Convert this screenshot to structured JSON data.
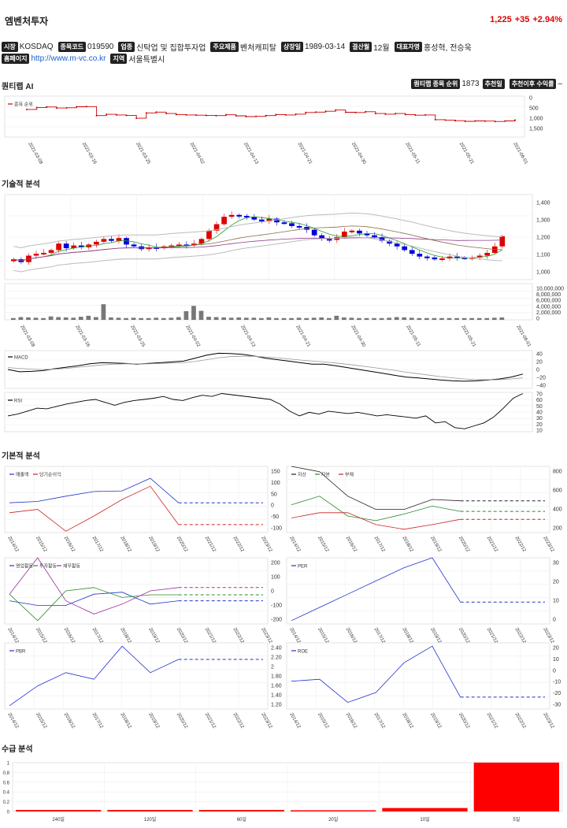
{
  "header": {
    "title": "엠벤처투자",
    "price": "1,225",
    "change": "+35",
    "change_pct": "+2.94%",
    "price_color": "#dd0000"
  },
  "info": {
    "market_label": "시장",
    "market": "KOSDAQ",
    "code_label": "종목코드",
    "code": "019590",
    "industry_label": "업종",
    "industry": "신탁업 및 집합투자업",
    "product_label": "주요제품",
    "product": "벤처캐피탈",
    "listed_label": "상장일",
    "listed": "1989-03-14",
    "fiscal_label": "결산월",
    "fiscal": "12월",
    "ceo_label": "대표자명",
    "ceo": "홍성혁, 전승욱",
    "homepage_label": "홈페이지",
    "homepage": "http://www.m-vc.co.kr",
    "region_label": "지역",
    "region": "서울특별시"
  },
  "sections": {
    "quant": "퀀티랩 AI",
    "tech": "기술적 분석",
    "fund": "기본적 분석",
    "supply": "수급 분석"
  },
  "ranking": {
    "rank_label": "퀀티랩 종목 순위",
    "rank": "1873",
    "rec_label": "추천일",
    "rec_return_label": "추천이후 수익률",
    "rec_return": "–"
  },
  "dates": [
    "2021-03-08",
    "2021-03-16",
    "2021-03-25",
    "2021-04-02",
    "2021-04-13",
    "2021-04-21",
    "2021-04-30",
    "2021-05-11",
    "2021-05-21",
    "2021-06-01"
  ],
  "rank_chart": {
    "legend": "종목 순위",
    "y_ticks": [
      "0",
      "500",
      "1,000",
      "1,500"
    ],
    "line_color": "#cc0000"
  },
  "candle_chart": {
    "y_ticks": [
      "1,400",
      "1,300",
      "1,200",
      "1,100",
      "1,000"
    ],
    "up_color": "#dd0000",
    "down_color": "#0000dd"
  },
  "volume_chart": {
    "y_ticks": [
      "10,000,000",
      "8,000,000",
      "6,000,000",
      "4,000,000",
      "2,000,000",
      "0"
    ]
  },
  "macd_chart": {
    "legend": "MACD",
    "y_ticks": [
      "40",
      "20",
      "0",
      "−20",
      "−40"
    ]
  },
  "rsi_chart": {
    "legend": "RSI",
    "y_ticks": [
      "70",
      "60",
      "50",
      "40",
      "30",
      "20",
      "10"
    ]
  },
  "years": [
    "2014/12",
    "2015/12",
    "2016/12",
    "2017/12",
    "2018/12",
    "2019/12",
    "2020/12",
    "2021/12",
    "2022/12",
    "2023/12"
  ],
  "fund_charts": {
    "sales": {
      "legend": [
        "매출액",
        "당기순이익"
      ],
      "y_ticks": [
        "150",
        "100",
        "50",
        "0",
        "-50",
        "-100"
      ]
    },
    "assets": {
      "legend": [
        "자산",
        "자본",
        "부채"
      ],
      "y_ticks": [
        "800",
        "600",
        "400",
        "200"
      ]
    },
    "cashflow": {
      "legend": [
        "영업활동",
        "투자활동",
        "재무활동"
      ],
      "y_ticks": [
        "200",
        "100",
        "0",
        "-100",
        "-200"
      ]
    },
    "per": {
      "legend": [
        "PER"
      ],
      "y_ticks": [
        "30",
        "20",
        "10",
        "0"
      ]
    },
    "pbr": {
      "legend": [
        "PBR"
      ],
      "y_ticks": [
        "2.40",
        "2.20",
        "2",
        "1.80",
        "1.60",
        "1.40",
        "1.20"
      ]
    },
    "roe": {
      "legend": [
        "ROE"
      ],
      "y_ticks": [
        "20",
        "10",
        "0",
        "-10",
        "-20",
        "-30"
      ]
    }
  },
  "supply": {
    "categories": [
      "240일",
      "120일",
      "60일",
      "20일",
      "10일",
      "5일"
    ],
    "values": [
      0.03,
      0.03,
      0.03,
      0.01,
      0.07,
      1.0
    ],
    "y_ticks": [
      "1",
      "0.8",
      "0.6",
      "0.4",
      "0.2",
      "0"
    ],
    "bar_color": "#ff0000"
  }
}
